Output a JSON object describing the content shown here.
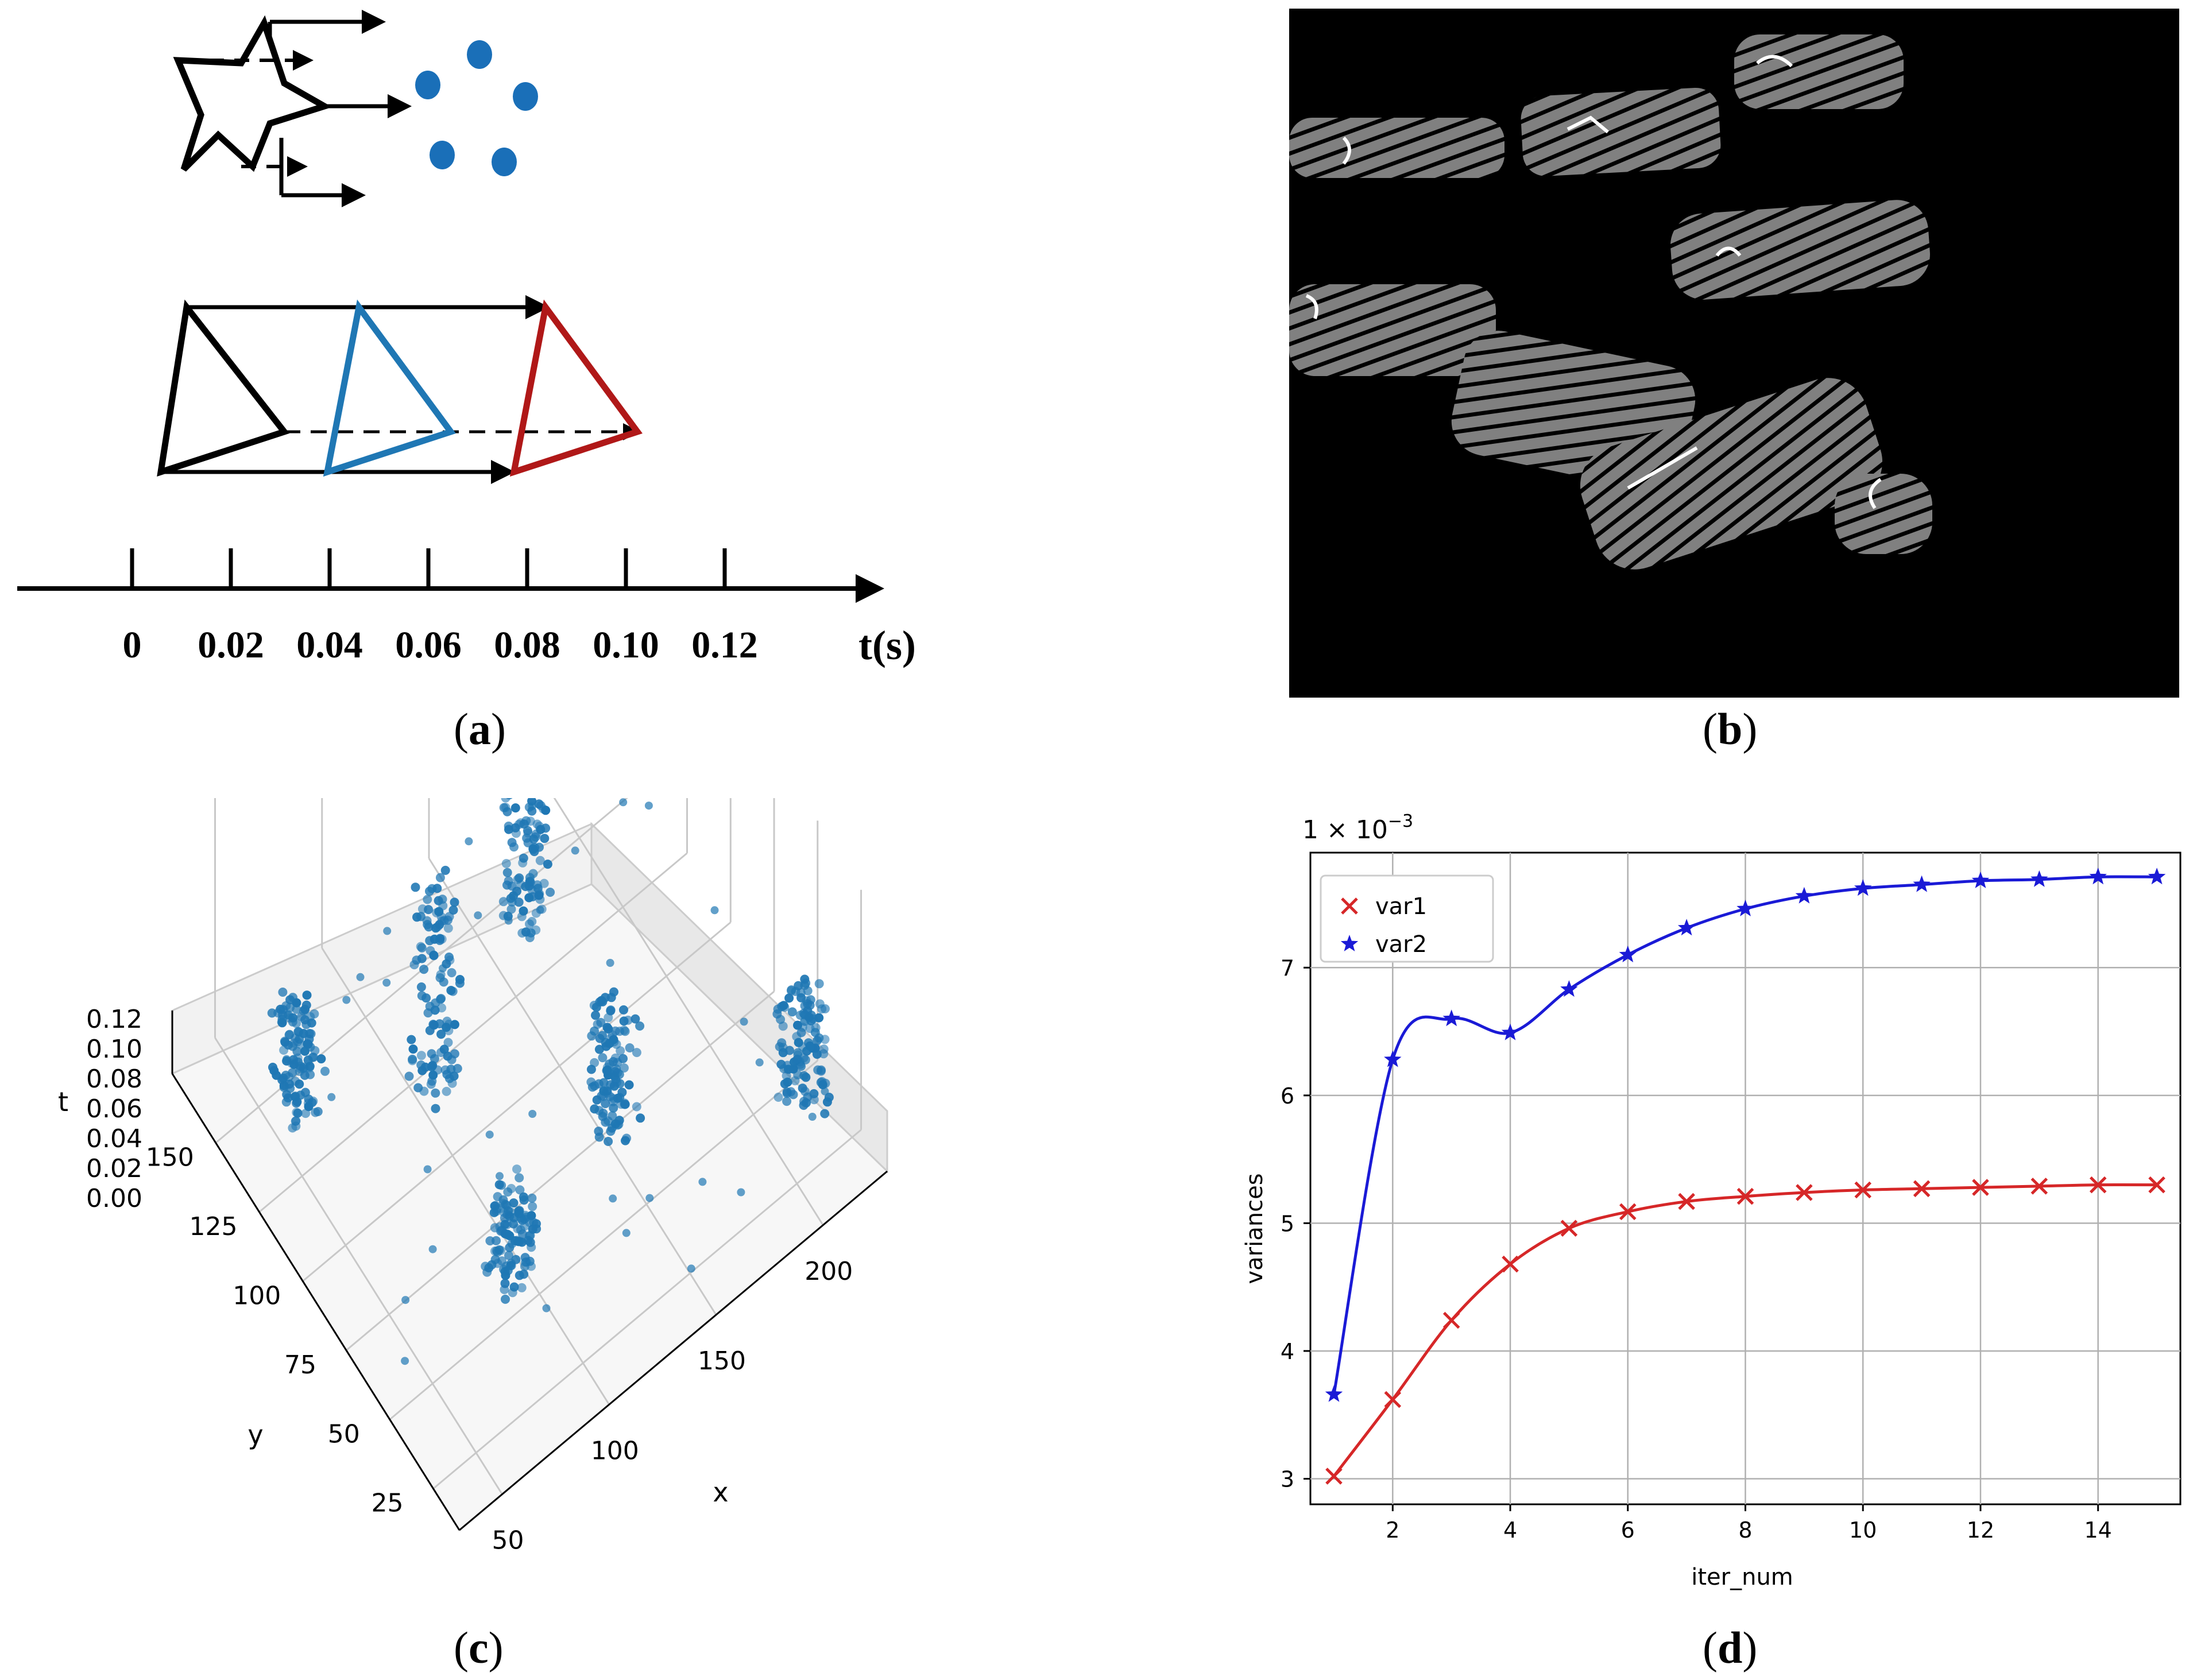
{
  "captions": {
    "a": {
      "open": "(",
      "letter": "a",
      "close": ")"
    },
    "b": {
      "open": "(",
      "letter": "b",
      "close": ")"
    },
    "c": {
      "open": "(",
      "letter": "c",
      "close": ")"
    },
    "d": {
      "open": "(",
      "letter": "d",
      "close": ")"
    }
  },
  "panel_a": {
    "timeline_ticks": [
      "0",
      "0.02",
      "0.04",
      "0.06",
      "0.08",
      "0.10",
      "0.12"
    ],
    "axis_label": "t(s)",
    "colors": {
      "black": "#000000",
      "blue": "#1f77b4",
      "red": "#b01818",
      "dots": "#1a6fb8"
    }
  },
  "panel_b": {
    "description_icon": "event-frame-image",
    "background": "#000000",
    "blob_color": "#808080"
  },
  "chart_data": [
    {
      "type": "scatter",
      "projection": "3d",
      "title": "",
      "xlabel": "x",
      "ylabel": "y",
      "zlabel": "t",
      "x_ticks": [
        "50",
        "100",
        "150",
        "200"
      ],
      "y_ticks": [
        "25",
        "50",
        "75",
        "100",
        "125",
        "150"
      ],
      "z_ticks": [
        "0.12",
        "0.10",
        "0.08",
        "0.06",
        "0.04",
        "0.02",
        "0.00"
      ],
      "point_color": "#1f77b4",
      "clusters": [
        {
          "x": 60,
          "y": 140,
          "t_range": [
            0.0,
            0.06
          ]
        },
        {
          "x": 95,
          "y": 60,
          "t_range": [
            0.0,
            0.04
          ]
        },
        {
          "x": 100,
          "y": 110,
          "t_range": [
            0.02,
            0.12
          ]
        },
        {
          "x": 150,
          "y": 120,
          "t_range": [
            0.04,
            0.12
          ]
        },
        {
          "x": 155,
          "y": 75,
          "t_range": [
            0.0,
            0.06
          ]
        },
        {
          "x": 215,
          "y": 40,
          "t_range": [
            0.0,
            0.06
          ]
        }
      ]
    },
    {
      "type": "line",
      "title": "",
      "xlabel": "iter_num",
      "ylabel": "variances",
      "offset_text": "1 × 10",
      "offset_exp": "−3",
      "xlim": [
        0.6,
        15.4
      ],
      "ylim": [
        2.8,
        7.9
      ],
      "x_ticks": [
        2,
        4,
        6,
        8,
        10,
        12,
        14
      ],
      "y_ticks": [
        3,
        4,
        5,
        6,
        7
      ],
      "legend_position": "top-left",
      "grid": true,
      "x": [
        1,
        2,
        3,
        4,
        5,
        6,
        7,
        8,
        9,
        10,
        11,
        12,
        13,
        14,
        15
      ],
      "series": [
        {
          "name": "var1",
          "marker": "x",
          "color": "#d62728",
          "values": [
            3.02,
            3.62,
            4.24,
            4.68,
            4.96,
            5.09,
            5.17,
            5.21,
            5.24,
            5.26,
            5.27,
            5.28,
            5.29,
            5.3,
            5.3
          ]
        },
        {
          "name": "var2",
          "marker": "*",
          "color": "#1a1ad6",
          "values": [
            3.66,
            6.28,
            6.6,
            6.49,
            6.83,
            7.1,
            7.31,
            7.46,
            7.56,
            7.62,
            7.65,
            7.68,
            7.69,
            7.71,
            7.71
          ]
        }
      ]
    }
  ]
}
